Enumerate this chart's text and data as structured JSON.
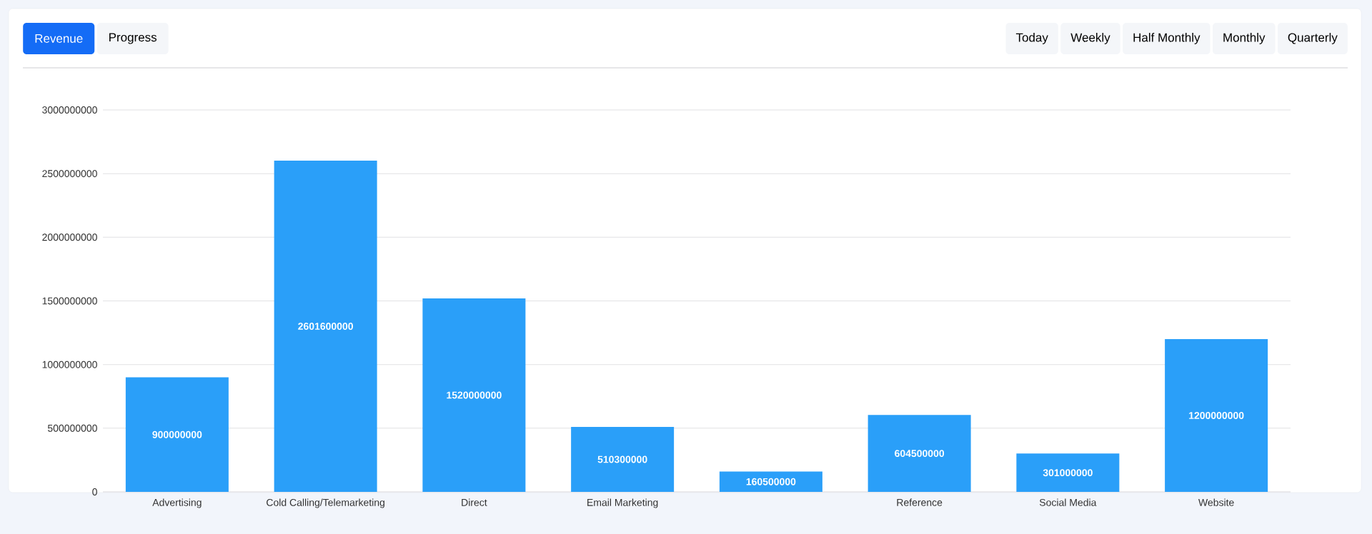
{
  "chart_data": {
    "type": "bar",
    "categories": [
      "Advertising",
      "Cold Calling/Telemarketing",
      "Direct",
      "Email Marketing",
      null,
      "Reference",
      "Social Media",
      "Website"
    ],
    "values": [
      900000000,
      2601600000,
      1520000000,
      510300000,
      160500000,
      604500000,
      301000000,
      1200000000
    ],
    "color": "#2a9ff9",
    "ylim": [
      0,
      3000000000
    ],
    "yticks": [
      0,
      500000000,
      1000000000,
      1500000000,
      2000000000,
      2500000000,
      3000000000
    ],
    "data_labels": true,
    "grid": "y",
    "annotations": [
      "Revenue",
      "Progress",
      "Today",
      "Weekly",
      "Half Monthly",
      "Monthly",
      "Quarterly"
    ]
  }
}
